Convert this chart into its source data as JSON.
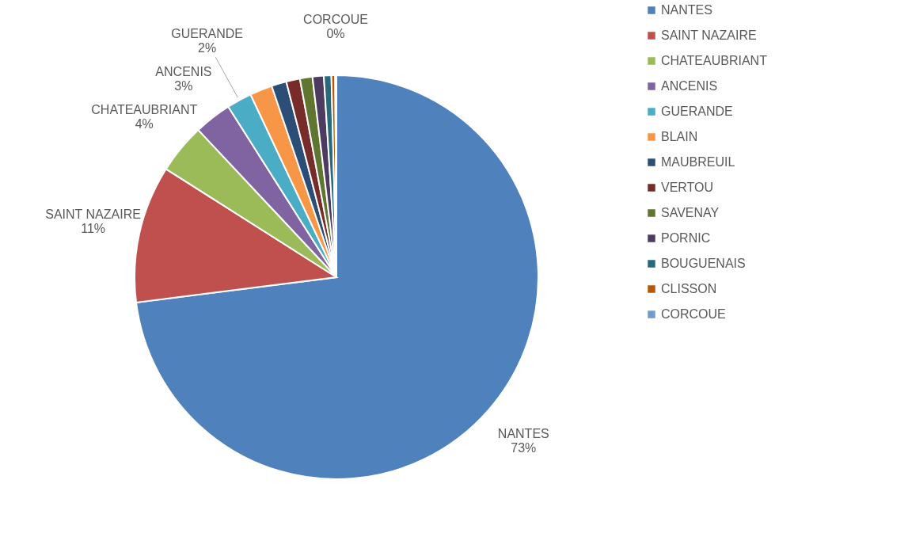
{
  "chart_data": {
    "type": "pie",
    "categories": [
      "NANTES",
      "SAINT NAZAIRE",
      "CHATEAUBRIANT",
      "ANCENIS",
      "GUERANDE",
      "BLAIN",
      "MAUBREUIL",
      "VERTOU",
      "SAVENAY",
      "PORNIC",
      "BOUGUENAIS",
      "CLISSON",
      "CORCOUE"
    ],
    "values": [
      73,
      11,
      4,
      3,
      2,
      1.8,
      1.2,
      1.1,
      1.0,
      0.9,
      0.6,
      0.3,
      0.1
    ],
    "colors": [
      "#4f81bd",
      "#c0504d",
      "#9bbb59",
      "#8064a2",
      "#4bacc6",
      "#f79646",
      "#2c4d75",
      "#772c2a",
      "#5f7530",
      "#4d3b62",
      "#276a7c",
      "#b65708",
      "#729aca"
    ],
    "value_labels": [
      "73%",
      "11%",
      "4%",
      "3%",
      "2%",
      null,
      null,
      null,
      null,
      null,
      null,
      null,
      "0%"
    ],
    "legend": "right"
  }
}
